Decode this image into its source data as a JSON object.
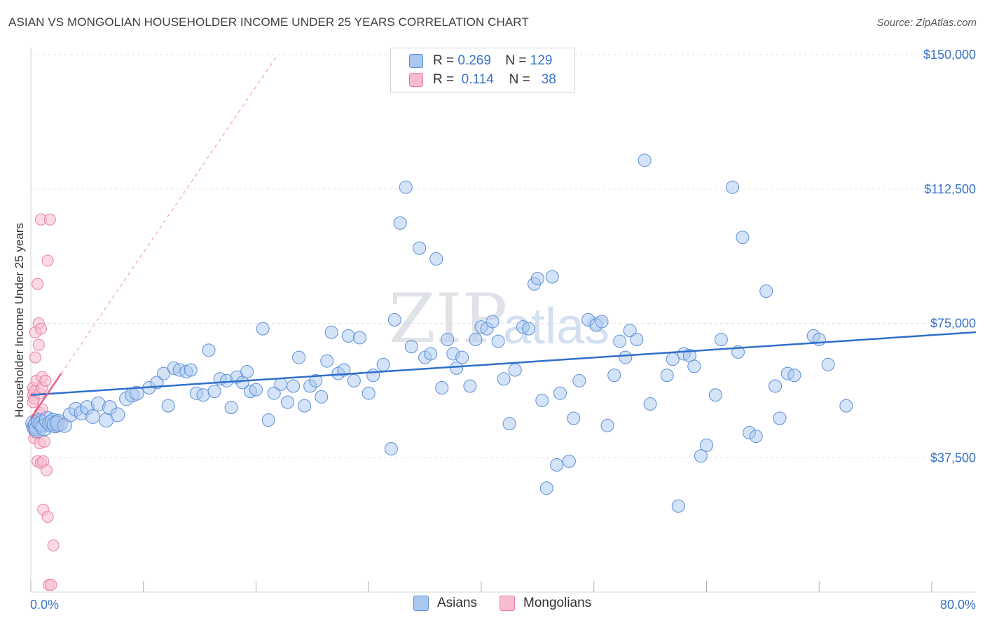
{
  "title": "ASIAN VS MONGOLIAN HOUSEHOLDER INCOME UNDER 25 YEARS CORRELATION CHART",
  "source": "Source: ZipAtlas.com",
  "watermark": {
    "zip": "ZIP",
    "atlas": "atlas"
  },
  "legend": {
    "rows": [
      {
        "r_label": "R =",
        "r_value": "0.269",
        "n_label": "N =",
        "n_value": "129"
      },
      {
        "r_label": "R =",
        "r_value": "0.114",
        "n_label": "N =",
        "n_value": "38"
      }
    ]
  },
  "bottom_legend": {
    "asians": "Asians",
    "mongolians": "Mongolians"
  },
  "colors": {
    "asian_fill": "#a9c8f0",
    "asian_stroke": "#5b8fd6",
    "asian_line": "#2f6fcb",
    "mongolian_fill": "#f8bcd0",
    "mongolian_stroke": "#e8809f",
    "mongolian_line": "#e5608a",
    "label_blue": "#3a73c8",
    "grid": "#dfe3e8"
  },
  "chart_data": {
    "type": "scatter",
    "title": "ASIAN VS MONGOLIAN HOUSEHOLDER INCOME UNDER 25 YEARS CORRELATION CHART",
    "xlabel": "",
    "ylabel": "Householder Income Under 25 years",
    "xlim": [
      0,
      80
    ],
    "ylim": [
      0,
      150000
    ],
    "x_tick_labels": [
      "0.0%",
      "80.0%"
    ],
    "y_ticks": [
      {
        "value": 37500,
        "label": "$37,500"
      },
      {
        "value": 75000,
        "label": "$75,000"
      },
      {
        "value": 112500,
        "label": "$112,500"
      },
      {
        "value": 150000,
        "label": "$150,000"
      }
    ],
    "series": [
      {
        "name": "Asians",
        "R": 0.269,
        "N": 129,
        "trend": {
          "x": [
            0,
            80
          ],
          "y": [
            55000,
            71700
          ]
        },
        "points": [
          [
            0.3,
            47000
          ],
          [
            0.4,
            46000
          ],
          [
            0.5,
            46500
          ],
          [
            0.6,
            45500
          ],
          [
            0.8,
            47500
          ],
          [
            1.0,
            47000
          ],
          [
            1.2,
            46000
          ],
          [
            1.5,
            48000
          ],
          [
            1.8,
            47000
          ],
          [
            2.0,
            47500
          ],
          [
            2.2,
            46800
          ],
          [
            2.5,
            47200
          ],
          [
            3.0,
            46500
          ],
          [
            3.5,
            49500
          ],
          [
            4.0,
            51000
          ],
          [
            4.5,
            50000
          ],
          [
            5.0,
            51500
          ],
          [
            5.5,
            49000
          ],
          [
            6.0,
            52500
          ],
          [
            6.7,
            48000
          ],
          [
            7.0,
            51500
          ],
          [
            7.7,
            49500
          ],
          [
            8.5,
            54000
          ],
          [
            9.0,
            55000
          ],
          [
            9.4,
            55500
          ],
          [
            10.5,
            57000
          ],
          [
            11.2,
            58500
          ],
          [
            11.8,
            61000
          ],
          [
            12.2,
            52000
          ],
          [
            12.7,
            62500
          ],
          [
            13.2,
            62000
          ],
          [
            13.8,
            61500
          ],
          [
            14.2,
            62000
          ],
          [
            14.7,
            55500
          ],
          [
            15.3,
            55000
          ],
          [
            15.8,
            67500
          ],
          [
            16.3,
            56000
          ],
          [
            16.8,
            59500
          ],
          [
            17.4,
            59000
          ],
          [
            17.8,
            51500
          ],
          [
            18.3,
            60000
          ],
          [
            18.8,
            58500
          ],
          [
            19.2,
            61500
          ],
          [
            19.5,
            56000
          ],
          [
            20.0,
            56500
          ],
          [
            20.6,
            73500
          ],
          [
            21.1,
            48000
          ],
          [
            21.6,
            55500
          ],
          [
            22.2,
            58000
          ],
          [
            22.8,
            53000
          ],
          [
            23.3,
            57500
          ],
          [
            23.8,
            65500
          ],
          [
            24.3,
            52000
          ],
          [
            24.8,
            57500
          ],
          [
            25.3,
            59000
          ],
          [
            25.8,
            54500
          ],
          [
            26.3,
            64500
          ],
          [
            26.7,
            72500
          ],
          [
            27.3,
            61000
          ],
          [
            27.8,
            62000
          ],
          [
            28.2,
            71500
          ],
          [
            28.7,
            59000
          ],
          [
            29.2,
            71000
          ],
          [
            30.0,
            55500
          ],
          [
            30.4,
            60500
          ],
          [
            31.3,
            63500
          ],
          [
            32.0,
            40000
          ],
          [
            32.3,
            76000
          ],
          [
            32.8,
            103000
          ],
          [
            33.3,
            113000
          ],
          [
            33.8,
            68500
          ],
          [
            34.5,
            96000
          ],
          [
            35.0,
            65500
          ],
          [
            35.5,
            66500
          ],
          [
            36.0,
            93000
          ],
          [
            36.5,
            57000
          ],
          [
            37.0,
            70500
          ],
          [
            37.5,
            66500
          ],
          [
            37.8,
            62500
          ],
          [
            38.3,
            65500
          ],
          [
            39.0,
            57500
          ],
          [
            39.5,
            70500
          ],
          [
            40.0,
            74000
          ],
          [
            40.5,
            73500
          ],
          [
            41.0,
            75500
          ],
          [
            41.5,
            70000
          ],
          [
            42.0,
            59500
          ],
          [
            42.5,
            47000
          ],
          [
            43.0,
            62000
          ],
          [
            43.7,
            74000
          ],
          [
            44.2,
            73500
          ],
          [
            44.7,
            86000
          ],
          [
            45.0,
            87500
          ],
          [
            45.4,
            53500
          ],
          [
            45.8,
            29000
          ],
          [
            46.3,
            88000
          ],
          [
            46.7,
            35500
          ],
          [
            47.0,
            55500
          ],
          [
            47.8,
            36500
          ],
          [
            48.2,
            48500
          ],
          [
            48.7,
            59000
          ],
          [
            49.5,
            76000
          ],
          [
            50.2,
            74500
          ],
          [
            50.7,
            75500
          ],
          [
            51.2,
            46500
          ],
          [
            51.8,
            60500
          ],
          [
            52.3,
            70000
          ],
          [
            52.8,
            65500
          ],
          [
            53.2,
            73000
          ],
          [
            53.8,
            70500
          ],
          [
            54.5,
            120500
          ],
          [
            55.0,
            52500
          ],
          [
            56.5,
            60500
          ],
          [
            57.0,
            65000
          ],
          [
            57.5,
            24000
          ],
          [
            58.0,
            66500
          ],
          [
            58.5,
            66000
          ],
          [
            58.9,
            63000
          ],
          [
            59.5,
            38000
          ],
          [
            60.0,
            41000
          ],
          [
            60.8,
            55000
          ],
          [
            61.3,
            70500
          ],
          [
            62.3,
            113000
          ],
          [
            62.8,
            67000
          ],
          [
            63.2,
            99000
          ],
          [
            63.8,
            44500
          ],
          [
            64.4,
            43500
          ],
          [
            65.3,
            84000
          ],
          [
            66.1,
            57500
          ],
          [
            66.5,
            48500
          ],
          [
            67.2,
            61000
          ],
          [
            67.8,
            60500
          ],
          [
            69.5,
            71500
          ],
          [
            70.0,
            70500
          ],
          [
            70.8,
            63500
          ],
          [
            72.4,
            52000
          ]
        ]
      },
      {
        "name": "Mongolians",
        "R": 0.114,
        "N": 38,
        "trend": {
          "x": [
            0,
            2.7
          ],
          "y": [
            48500,
            61000
          ]
        },
        "points": [
          [
            0.2,
            57000
          ],
          [
            0.2,
            55000
          ],
          [
            0.2,
            53000
          ],
          [
            0.2,
            46000
          ],
          [
            0.3,
            56000
          ],
          [
            0.3,
            54000
          ],
          [
            0.3,
            43000
          ],
          [
            0.4,
            65500
          ],
          [
            0.4,
            72500
          ],
          [
            0.4,
            44500
          ],
          [
            0.5,
            59000
          ],
          [
            0.5,
            47000
          ],
          [
            0.6,
            86000
          ],
          [
            0.6,
            36500
          ],
          [
            0.7,
            75000
          ],
          [
            0.7,
            69000
          ],
          [
            0.8,
            55500
          ],
          [
            0.8,
            50000
          ],
          [
            0.8,
            41500
          ],
          [
            0.9,
            104000
          ],
          [
            0.9,
            73500
          ],
          [
            0.9,
            36000
          ],
          [
            1.0,
            60000
          ],
          [
            1.0,
            57000
          ],
          [
            1.0,
            51000
          ],
          [
            1.1,
            23000
          ],
          [
            1.1,
            36500
          ],
          [
            1.2,
            42000
          ],
          [
            1.3,
            59000
          ],
          [
            1.4,
            34000
          ],
          [
            1.5,
            21000
          ],
          [
            1.5,
            92500
          ],
          [
            1.6,
            2000
          ],
          [
            1.7,
            104000
          ],
          [
            1.8,
            2000
          ],
          [
            2.0,
            13000
          ],
          [
            2.2,
            46000
          ],
          [
            2.5,
            47500
          ]
        ]
      }
    ]
  }
}
